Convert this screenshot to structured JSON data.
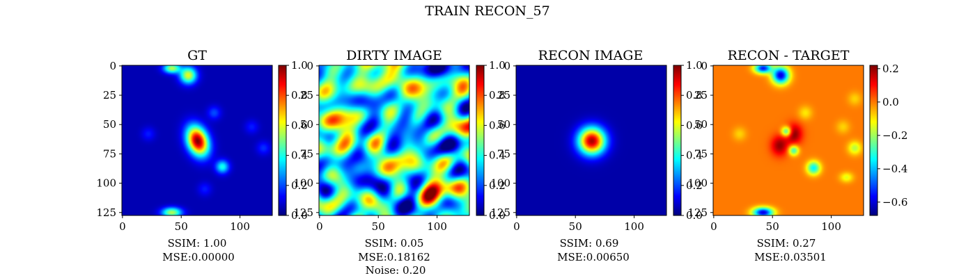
{
  "suptitle": "TRAIN RECON_57",
  "panels": [
    {
      "title": "GT",
      "caption": [
        "SSIM: 1.00",
        "MSE:0.00000"
      ],
      "colorbar": {
        "min": 0.0,
        "max": 1.0,
        "ticks": [
          "0.0",
          "0.2",
          "0.4",
          "0.6",
          "0.8",
          "1.0"
        ],
        "tick_values": [
          0,
          0.2,
          0.4,
          0.6,
          0.8,
          1.0
        ]
      },
      "background": 0.05,
      "blobs": [
        {
          "x": 64,
          "y": 64,
          "sx": 6,
          "sy": 9,
          "angle": -20,
          "amp": 0.95
        },
        {
          "x": 56,
          "y": 8,
          "sx": 5,
          "sy": 5,
          "amp": 0.55
        },
        {
          "x": 42,
          "y": 2,
          "sx": 5,
          "sy": 3,
          "amp": 0.5
        },
        {
          "x": 85,
          "y": 86,
          "sx": 4,
          "sy": 4,
          "amp": 0.35
        },
        {
          "x": 42,
          "y": 125,
          "sx": 6,
          "sy": 3,
          "amp": 0.5
        },
        {
          "x": 78,
          "y": 40,
          "sx": 4,
          "sy": 4,
          "amp": 0.15
        },
        {
          "x": 22,
          "y": 58,
          "sx": 4,
          "sy": 4,
          "amp": 0.1
        },
        {
          "x": 110,
          "y": 52,
          "sx": 4,
          "sy": 4,
          "amp": 0.1
        },
        {
          "x": 120,
          "y": 70,
          "sx": 4,
          "sy": 4,
          "amp": 0.12
        },
        {
          "x": 70,
          "y": 105,
          "sx": 4,
          "sy": 4,
          "amp": 0.1
        }
      ]
    },
    {
      "title": "DIRTY IMAGE",
      "caption": [
        "SSIM: 0.05",
        "MSE:0.18162",
        "Noise: 0.20"
      ],
      "colorbar": {
        "min": 0.0,
        "max": 1.0,
        "ticks": [
          "0.0",
          "0.2",
          "0.4",
          "0.6",
          "0.8",
          "1.0"
        ],
        "tick_values": [
          0,
          0.2,
          0.4,
          0.6,
          0.8,
          1.0
        ]
      },
      "background": 0.5,
      "noise_seed": 57
    },
    {
      "title": "RECON IMAGE",
      "caption": [
        "SSIM: 0.69",
        "MSE:0.00650"
      ],
      "colorbar": {
        "min": 0.0,
        "max": 1.0,
        "ticks": [
          "0.0",
          "0.2",
          "0.4",
          "0.6",
          "0.8",
          "1.0"
        ],
        "tick_values": [
          0,
          0.2,
          0.4,
          0.6,
          0.8,
          1.0
        ]
      },
      "background": 0.04,
      "blobs": [
        {
          "x": 64,
          "y": 64,
          "sx": 8,
          "sy": 8,
          "amp": 0.92
        }
      ]
    },
    {
      "title": "RECON - TARGET",
      "caption": [
        "SSIM: 0.27",
        "MSE:0.03501"
      ],
      "colorbar": {
        "min": -0.68,
        "max": 0.22,
        "ticks": [
          "0.2",
          "0.0",
          "−0.2",
          "−0.4",
          "−0.6"
        ],
        "tick_values": [
          0.2,
          0.0,
          -0.2,
          -0.4,
          -0.6
        ]
      },
      "background": 0.0,
      "blobs": [
        {
          "x": 57,
          "y": 8,
          "sx": 5,
          "sy": 5,
          "amp": -0.6
        },
        {
          "x": 42,
          "y": 2,
          "sx": 5,
          "sy": 3,
          "amp": -0.55
        },
        {
          "x": 68,
          "y": 58,
          "sx": 5,
          "sy": 6,
          "amp": 0.22
        },
        {
          "x": 56,
          "y": 68,
          "sx": 5,
          "sy": 6,
          "amp": 0.2
        },
        {
          "x": 62,
          "y": 56,
          "sx": 3,
          "sy": 3,
          "amp": -0.35
        },
        {
          "x": 68,
          "y": 72,
          "sx": 3,
          "sy": 3,
          "amp": -0.3
        },
        {
          "x": 85,
          "y": 87,
          "sx": 4,
          "sy": 4,
          "amp": -0.35
        },
        {
          "x": 42,
          "y": 125,
          "sx": 6,
          "sy": 3,
          "amp": -0.6
        },
        {
          "x": 120,
          "y": 70,
          "sx": 4,
          "sy": 4,
          "amp": -0.18
        },
        {
          "x": 113,
          "y": 95,
          "sx": 4,
          "sy": 3,
          "amp": -0.14
        },
        {
          "x": 22,
          "y": 58,
          "sx": 4,
          "sy": 4,
          "amp": -0.08
        },
        {
          "x": 110,
          "y": 52,
          "sx": 4,
          "sy": 4,
          "amp": -0.08
        },
        {
          "x": 120,
          "y": 28,
          "sx": 4,
          "sy": 4,
          "amp": -0.08
        },
        {
          "x": 78,
          "y": 40,
          "sx": 4,
          "sy": 4,
          "amp": -0.1
        }
      ]
    }
  ],
  "chart_data": {
    "type": "heatmap",
    "title": "TRAIN RECON_57",
    "colormap": "jet",
    "image_size": [
      128,
      128
    ],
    "x_ticks": [
      0,
      50,
      100
    ],
    "y_ticks": [
      0,
      25,
      50,
      75,
      100,
      125
    ],
    "panels": [
      {
        "title": "GT",
        "clim": [
          0.0,
          1.0
        ],
        "ssim": 1.0,
        "mse": 0.0
      },
      {
        "title": "DIRTY IMAGE",
        "clim": [
          0.0,
          1.0
        ],
        "ssim": 0.05,
        "mse": 0.18162,
        "noise": 0.2
      },
      {
        "title": "RECON IMAGE",
        "clim": [
          0.0,
          1.0
        ],
        "ssim": 0.69,
        "mse": 0.0065
      },
      {
        "title": "RECON - TARGET",
        "clim": [
          -0.68,
          0.22
        ],
        "ssim": 0.27,
        "mse": 0.03501
      }
    ],
    "grid": false
  }
}
